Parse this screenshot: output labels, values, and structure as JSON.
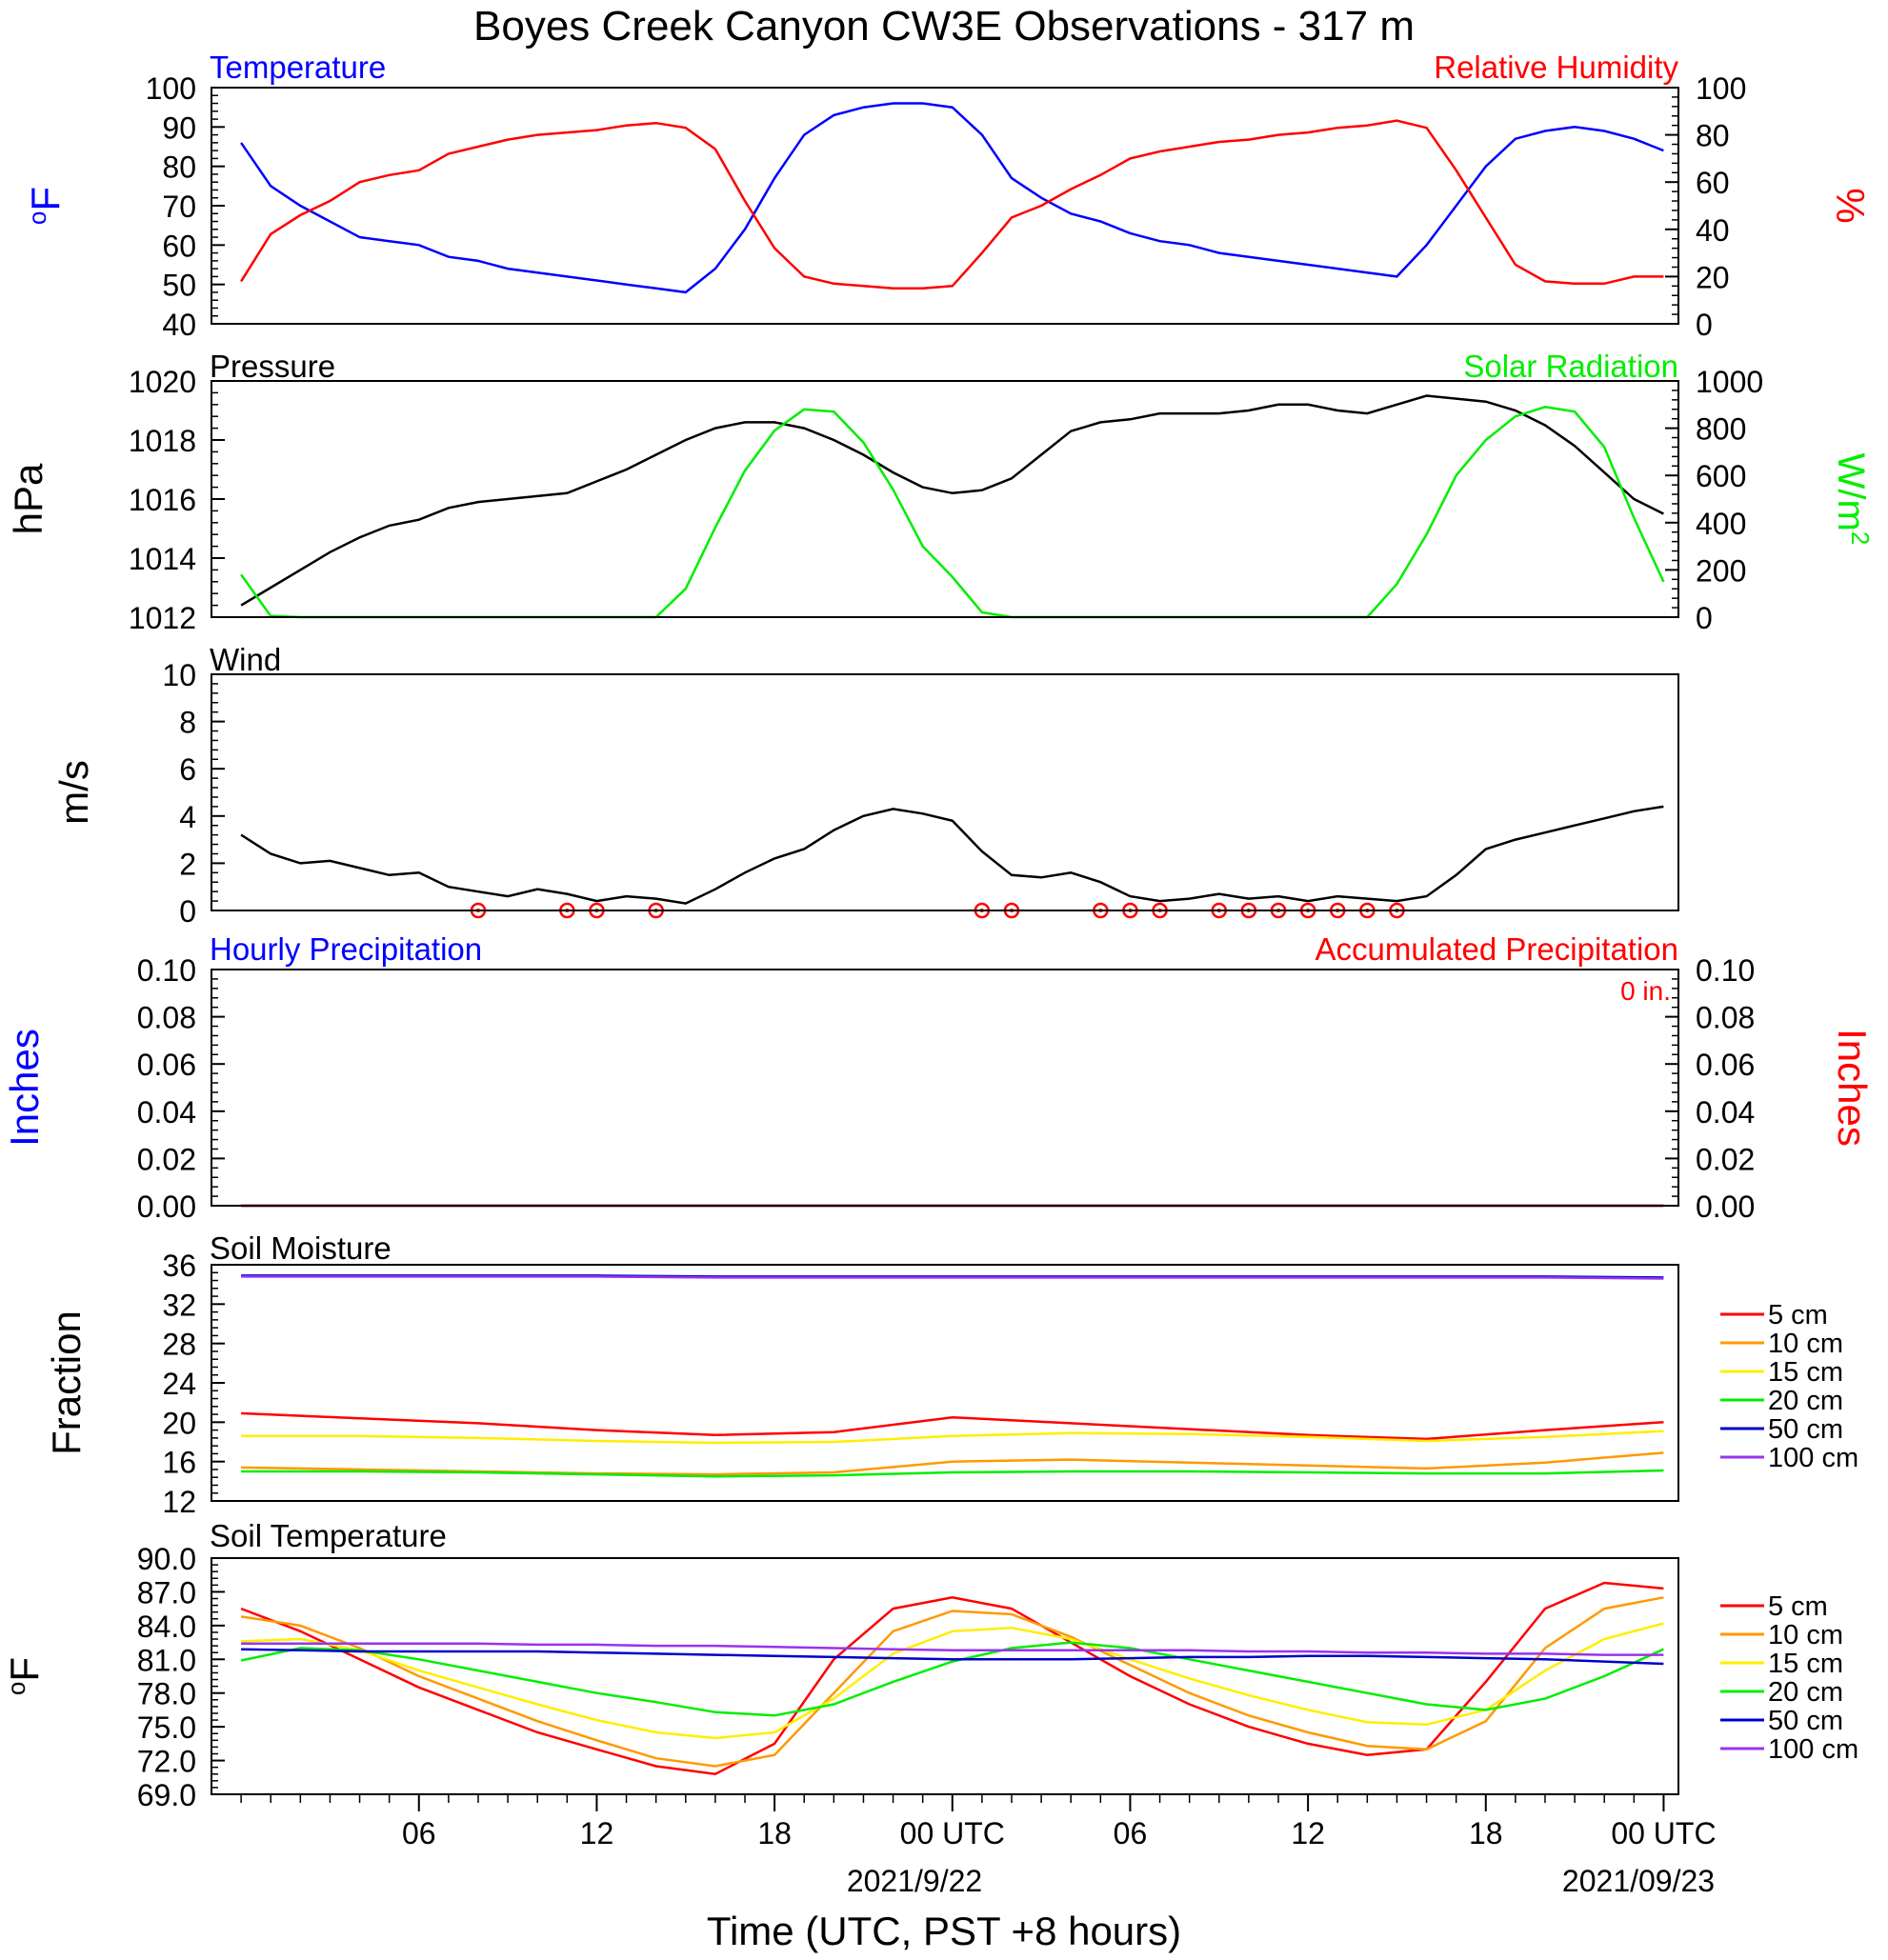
{
  "title": "Boyes Creek Canyon CW3E Observations - 317 m",
  "xlabel": "Time (UTC, PST +8 hours)",
  "x_ticks": [
    "06",
    "12",
    "18",
    "00 UTC",
    "06",
    "12",
    "18",
    "00 UTC"
  ],
  "date_labels": [
    "2021/9/22",
    "2021/09/23"
  ],
  "colors": {
    "blue": "#0000ff",
    "red": "#ff0000",
    "green": "#00ee00",
    "black": "#000000",
    "orange": "#ff9900",
    "yellow": "#ffee00",
    "navy": "#0000cc",
    "purple": "#9933ee"
  },
  "chart_data": [
    {
      "id": "temp_rh",
      "type": "line",
      "title_left": "Temperature",
      "title_right": "Relative Humidity",
      "ylabel_left": "oF",
      "ylabel_right": "%",
      "ylim_left": [
        40,
        100
      ],
      "ylim_right": [
        0,
        100
      ],
      "yticks_left": [
        "100",
        "90",
        "80",
        "70",
        "60",
        "50",
        "40"
      ],
      "yticks_right": [
        "100",
        "80",
        "60",
        "40",
        "20",
        "0"
      ],
      "x_hours": [
        0,
        1,
        2,
        3,
        4,
        5,
        6,
        7,
        8,
        9,
        10,
        11,
        12,
        13,
        14,
        15,
        16,
        17,
        18,
        19,
        20,
        21,
        22,
        23,
        24,
        25,
        26,
        27,
        28,
        29,
        30,
        31,
        32,
        33,
        34,
        35,
        36,
        37,
        38,
        39,
        40,
        41,
        42,
        43,
        44,
        45,
        46,
        47,
        48
      ],
      "series": [
        {
          "name": "Temperature",
          "axis": "left",
          "color": "#0000ff",
          "values": [
            86,
            75,
            70,
            66,
            62,
            61,
            60,
            57,
            56,
            54,
            53,
            52,
            51,
            50,
            49,
            48,
            54,
            64,
            77,
            88,
            93,
            95,
            96,
            96,
            95,
            88,
            77,
            72,
            68,
            66,
            63,
            61,
            60,
            58,
            57,
            56,
            55,
            54,
            53,
            52,
            60,
            70,
            80,
            87,
            89,
            90,
            89,
            87,
            84
          ]
        },
        {
          "name": "Relative Humidity",
          "axis": "right",
          "color": "#ff0000",
          "values": [
            18,
            38,
            46,
            52,
            60,
            63,
            65,
            72,
            75,
            78,
            80,
            81,
            82,
            84,
            85,
            83,
            74,
            52,
            32,
            20,
            17,
            16,
            15,
            15,
            16,
            30,
            45,
            50,
            57,
            63,
            70,
            73,
            75,
            77,
            78,
            80,
            81,
            83,
            84,
            86,
            83,
            65,
            45,
            25,
            18,
            17,
            17,
            20,
            20
          ]
        }
      ]
    },
    {
      "id": "pressure_solar",
      "type": "line",
      "title_left": "Pressure",
      "title_right": "Solar Radiation",
      "ylabel_left": "hPa",
      "ylabel_right": "W/m2",
      "ylim_left": [
        1012,
        1020
      ],
      "ylim_right": [
        0,
        1000
      ],
      "yticks_left": [
        "1020",
        "1018",
        "1016",
        "1014",
        "1012"
      ],
      "yticks_right": [
        "1000",
        "800",
        "600",
        "400",
        "200",
        "0"
      ],
      "x_hours": [
        0,
        1,
        2,
        3,
        4,
        5,
        6,
        7,
        8,
        9,
        10,
        11,
        12,
        13,
        14,
        15,
        16,
        17,
        18,
        19,
        20,
        21,
        22,
        23,
        24,
        25,
        26,
        27,
        28,
        29,
        30,
        31,
        32,
        33,
        34,
        35,
        36,
        37,
        38,
        39,
        40,
        41,
        42,
        43,
        44,
        45,
        46,
        47,
        48
      ],
      "series": [
        {
          "name": "Pressure",
          "axis": "left",
          "color": "#000000",
          "values": [
            1012.4,
            1013.0,
            1013.6,
            1014.2,
            1014.7,
            1015.1,
            1015.3,
            1015.7,
            1015.9,
            1016.0,
            1016.1,
            1016.2,
            1016.6,
            1017.0,
            1017.5,
            1018.0,
            1018.4,
            1018.6,
            1018.6,
            1018.4,
            1018.0,
            1017.5,
            1016.9,
            1016.4,
            1016.2,
            1016.3,
            1016.7,
            1017.5,
            1018.3,
            1018.6,
            1018.7,
            1018.9,
            1018.9,
            1018.9,
            1019.0,
            1019.2,
            1019.2,
            1019.0,
            1018.9,
            1019.2,
            1019.5,
            1019.4,
            1019.3,
            1019.0,
            1018.5,
            1017.8,
            1016.9,
            1016.0,
            1015.5
          ]
        },
        {
          "name": "Solar Radiation",
          "axis": "right",
          "color": "#00ee00",
          "values": [
            180,
            5,
            0,
            0,
            0,
            0,
            0,
            0,
            0,
            0,
            0,
            0,
            0,
            0,
            0,
            120,
            380,
            620,
            790,
            880,
            870,
            740,
            540,
            300,
            170,
            20,
            0,
            0,
            0,
            0,
            0,
            0,
            0,
            0,
            0,
            0,
            0,
            0,
            0,
            140,
            350,
            600,
            750,
            850,
            890,
            870,
            720,
            420,
            150
          ]
        }
      ]
    },
    {
      "id": "wind",
      "type": "line",
      "title_left": "Wind",
      "ylabel_left": "m/s",
      "ylim_left": [
        0,
        10
      ],
      "yticks_left": [
        "10",
        "8",
        "6",
        "4",
        "2",
        "0"
      ],
      "x_hours": [
        0,
        1,
        2,
        3,
        4,
        5,
        6,
        7,
        8,
        9,
        10,
        11,
        12,
        13,
        14,
        15,
        16,
        17,
        18,
        19,
        20,
        21,
        22,
        23,
        24,
        25,
        26,
        27,
        28,
        29,
        30,
        31,
        32,
        33,
        34,
        35,
        36,
        37,
        38,
        39,
        40,
        41,
        42,
        43,
        44,
        45,
        46,
        47,
        48
      ],
      "series": [
        {
          "name": "Wind speed",
          "axis": "left",
          "color": "#000000",
          "values": [
            3.2,
            2.4,
            2.0,
            2.1,
            1.8,
            1.5,
            1.6,
            1.0,
            0.8,
            0.6,
            0.9,
            0.7,
            0.4,
            0.6,
            0.5,
            0.3,
            0.9,
            1.6,
            2.2,
            2.6,
            3.4,
            4.0,
            4.3,
            4.1,
            3.8,
            2.5,
            1.5,
            1.4,
            1.6,
            1.2,
            0.6,
            0.4,
            0.5,
            0.7,
            0.5,
            0.6,
            0.4,
            0.6,
            0.5,
            0.4,
            0.6,
            1.5,
            2.6,
            3.0,
            3.3,
            3.6,
            3.9,
            4.2,
            4.4
          ]
        }
      ],
      "calm_hours": [
        8,
        11,
        12,
        14,
        25,
        26,
        29,
        30,
        31,
        33,
        34,
        35,
        36,
        37,
        38,
        39
      ]
    },
    {
      "id": "precip",
      "type": "line",
      "title_left": "Hourly Precipitation",
      "title_right": "Accumulated Precipitation",
      "annotation": "0 in.",
      "ylabel_left": "Inches",
      "ylabel_right": "Inches",
      "ylim_left": [
        0,
        0.1
      ],
      "ylim_right": [
        0,
        0.1
      ],
      "yticks_left": [
        "0.10",
        "0.08",
        "0.06",
        "0.04",
        "0.02",
        "0.00"
      ],
      "yticks_right": [
        "0.10",
        "0.08",
        "0.06",
        "0.04",
        "0.02",
        "0.00"
      ],
      "x_hours": [
        0,
        48
      ],
      "series": [
        {
          "name": "Hourly Precipitation",
          "axis": "left",
          "color": "#0000ff",
          "values": [
            0,
            0
          ]
        },
        {
          "name": "Accumulated Precipitation",
          "axis": "right",
          "color": "#ff0000",
          "values": [
            0,
            0
          ]
        }
      ]
    },
    {
      "id": "soil_moisture",
      "type": "line",
      "title_left": "Soil Moisture",
      "ylabel_left": "Fraction",
      "ylim_left": [
        12,
        36
      ],
      "yticks_left": [
        "36",
        "32",
        "28",
        "24",
        "20",
        "16",
        "12"
      ],
      "x_hours": [
        0,
        4,
        8,
        12,
        16,
        20,
        24,
        28,
        32,
        36,
        40,
        44,
        48
      ],
      "series": [
        {
          "name": "5 cm",
          "color": "#ff0000",
          "values": [
            20.9,
            20.4,
            19.9,
            19.2,
            18.7,
            19.0,
            20.5,
            19.9,
            19.3,
            18.7,
            18.3,
            19.2,
            20.0
          ]
        },
        {
          "name": "10 cm",
          "color": "#ff9900",
          "values": [
            15.4,
            15.2,
            15.0,
            14.8,
            14.7,
            14.9,
            16.0,
            16.2,
            15.9,
            15.6,
            15.3,
            15.9,
            16.9
          ]
        },
        {
          "name": "15 cm",
          "color": "#ffee00",
          "values": [
            18.6,
            18.6,
            18.4,
            18.1,
            17.9,
            18.0,
            18.6,
            18.9,
            18.8,
            18.5,
            18.1,
            18.5,
            19.1
          ]
        },
        {
          "name": "20 cm",
          "color": "#00ee00",
          "values": [
            15.0,
            15.0,
            14.9,
            14.7,
            14.5,
            14.6,
            14.9,
            15.0,
            15.0,
            14.9,
            14.8,
            14.8,
            15.1
          ]
        },
        {
          "name": "50 cm",
          "color": "#0000cc",
          "values": [
            34.9,
            34.9,
            34.9,
            34.9,
            34.8,
            34.8,
            34.8,
            34.8,
            34.8,
            34.8,
            34.8,
            34.8,
            34.7
          ]
        },
        {
          "name": "100 cm",
          "color": "#9933ee",
          "values": [
            34.8,
            34.8,
            34.8,
            34.8,
            34.7,
            34.7,
            34.7,
            34.7,
            34.7,
            34.7,
            34.7,
            34.7,
            34.6
          ]
        }
      ]
    },
    {
      "id": "soil_temperature",
      "type": "line",
      "title_left": "Soil Temperature",
      "ylabel_left": "oF",
      "ylim_left": [
        69,
        90
      ],
      "yticks_left": [
        "90.0",
        "87.0",
        "84.0",
        "81.0",
        "78.0",
        "75.0",
        "72.0",
        "69.0"
      ],
      "x_hours": [
        0,
        2,
        4,
        6,
        8,
        10,
        12,
        14,
        16,
        18,
        20,
        22,
        24,
        26,
        28,
        30,
        32,
        34,
        36,
        38,
        40,
        42,
        44,
        46,
        48
      ],
      "series": [
        {
          "name": "5 cm",
          "color": "#ff0000",
          "values": [
            85.5,
            83.5,
            81.0,
            78.5,
            76.5,
            74.5,
            73.0,
            71.5,
            70.8,
            73.5,
            81.0,
            85.5,
            86.5,
            85.5,
            82.5,
            79.5,
            77.0,
            75.0,
            73.5,
            72.5,
            73.0,
            79.0,
            85.5,
            87.8,
            87.3
          ]
        },
        {
          "name": "10 cm",
          "color": "#ff9900",
          "values": [
            84.8,
            84.0,
            82.0,
            79.5,
            77.5,
            75.5,
            73.8,
            72.2,
            71.5,
            72.5,
            78.0,
            83.5,
            85.3,
            85.0,
            83.0,
            80.5,
            78.0,
            76.0,
            74.5,
            73.3,
            73.0,
            75.5,
            82.0,
            85.5,
            86.5
          ]
        },
        {
          "name": "15 cm",
          "color": "#ffee00",
          "values": [
            82.6,
            82.8,
            81.8,
            80.0,
            78.5,
            77.0,
            75.6,
            74.5,
            74.0,
            74.5,
            77.5,
            81.5,
            83.5,
            83.8,
            82.8,
            81.0,
            79.3,
            77.8,
            76.5,
            75.4,
            75.2,
            76.5,
            80.0,
            82.8,
            84.2
          ]
        },
        {
          "name": "20 cm",
          "color": "#00ee00",
          "values": [
            80.9,
            82.0,
            81.8,
            81.0,
            80.0,
            79.0,
            78.0,
            77.2,
            76.3,
            76.0,
            77.0,
            79.0,
            80.8,
            82.0,
            82.5,
            82.0,
            81.0,
            80.0,
            79.0,
            78.0,
            77.0,
            76.5,
            77.5,
            79.5,
            81.9
          ]
        },
        {
          "name": "50 cm",
          "color": "#0000cc",
          "values": [
            81.9,
            81.8,
            81.7,
            81.7,
            81.7,
            81.7,
            81.6,
            81.5,
            81.4,
            81.3,
            81.2,
            81.1,
            81.0,
            81.0,
            81.0,
            81.1,
            81.2,
            81.2,
            81.3,
            81.3,
            81.2,
            81.1,
            81.0,
            80.8,
            80.6
          ]
        },
        {
          "name": "100 cm",
          "color": "#9933ee",
          "values": [
            82.4,
            82.4,
            82.4,
            82.4,
            82.4,
            82.3,
            82.3,
            82.2,
            82.2,
            82.1,
            82.0,
            81.9,
            81.8,
            81.8,
            81.8,
            81.8,
            81.8,
            81.7,
            81.7,
            81.6,
            81.6,
            81.5,
            81.5,
            81.4,
            81.4
          ]
        }
      ]
    }
  ]
}
